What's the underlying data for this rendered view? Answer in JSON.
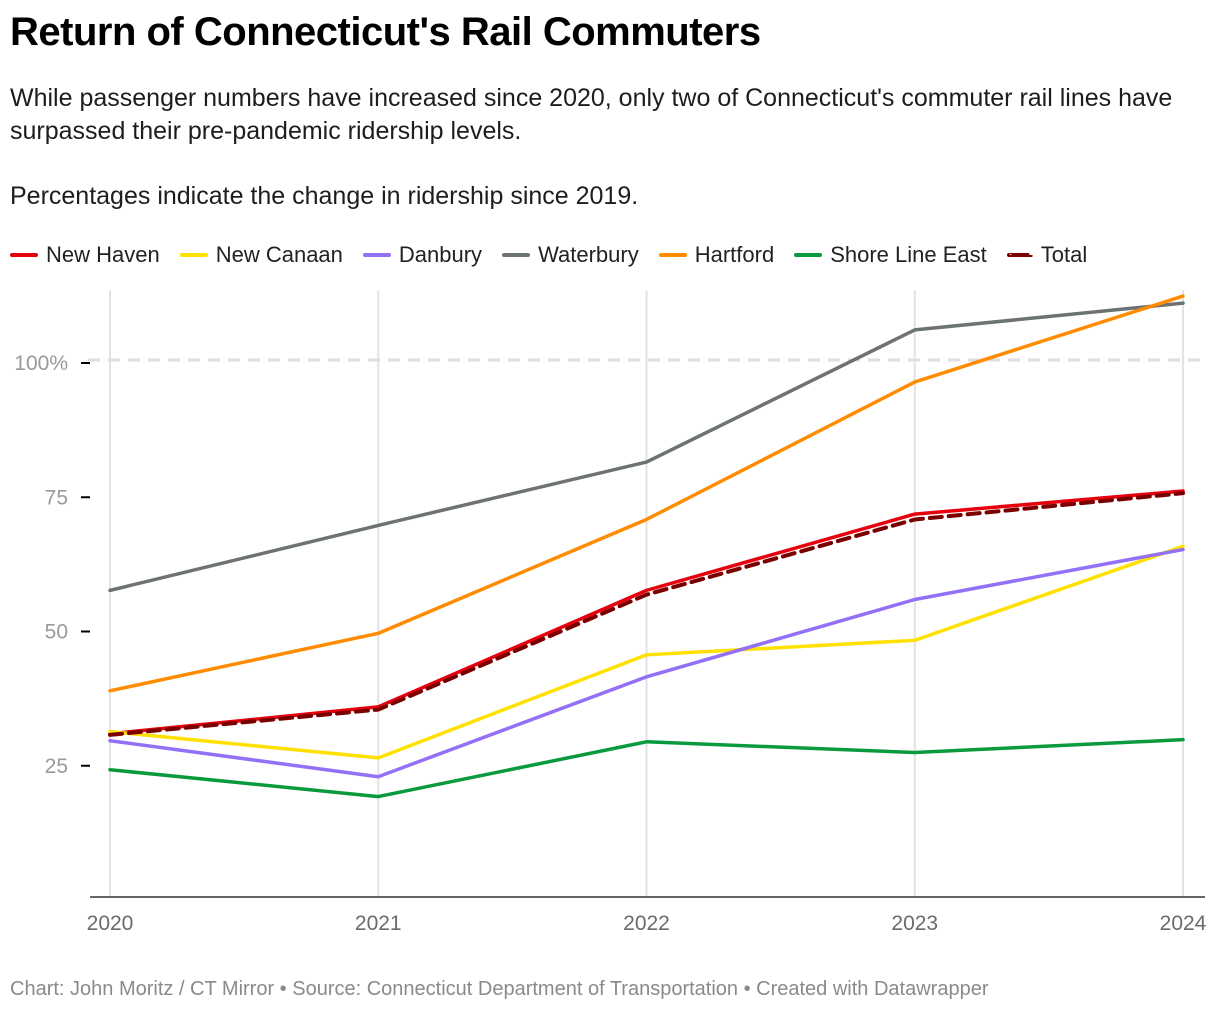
{
  "title": "Return of Connecticut's Rail Commuters",
  "description": "While passenger numbers have increased since 2020, only two of Connecticut's commuter rail lines have surpassed their pre-pandemic ridership levels.",
  "note": "Percentages indicate the change in ridership since 2019.",
  "footer": "Chart: John Moritz / CT Mirror • Source: Connecticut Department of Transportation • Created with Datawrapper",
  "chart_data": {
    "type": "line",
    "x": [
      2020,
      2021,
      2022,
      2023,
      2024
    ],
    "x_tick_labels": [
      "2020",
      "2021",
      "2022",
      "2023",
      "2024"
    ],
    "y_ticks": [
      25,
      50,
      75,
      100
    ],
    "y_tick_labels": [
      "25",
      "50",
      "75",
      "100%"
    ],
    "ylim": [
      0,
      113
    ],
    "reference_line": 100,
    "grid": "vertical",
    "legend_placement": "top",
    "series": [
      {
        "name": "New Haven",
        "color": "#e6000e",
        "dashed": false,
        "values": [
          30.4,
          35.4,
          57.1,
          71.3,
          75.6
        ]
      },
      {
        "name": "New Canaan",
        "color": "#ffe100",
        "dashed": false,
        "values": [
          30.8,
          25.9,
          45.1,
          47.8,
          65.3
        ]
      },
      {
        "name": "Danbury",
        "color": "#9370f5",
        "dashed": false,
        "values": [
          29.1,
          22.4,
          41.0,
          55.4,
          64.7
        ]
      },
      {
        "name": "Waterbury",
        "color": "#6d7275",
        "dashed": false,
        "values": [
          57.1,
          69.2,
          81.0,
          105.6,
          110.6
        ]
      },
      {
        "name": "Hartford",
        "color": "#ff8c00",
        "dashed": false,
        "values": [
          38.4,
          49.1,
          70.3,
          95.9,
          111.9
        ]
      },
      {
        "name": "Shore Line East",
        "color": "#0a9a3e",
        "dashed": false,
        "values": [
          23.7,
          18.7,
          28.9,
          26.9,
          29.3
        ]
      },
      {
        "name": "Total",
        "color": "#7a0000",
        "dashed": true,
        "values": [
          30.2,
          34.9,
          56.3,
          70.3,
          75.2
        ]
      }
    ]
  }
}
